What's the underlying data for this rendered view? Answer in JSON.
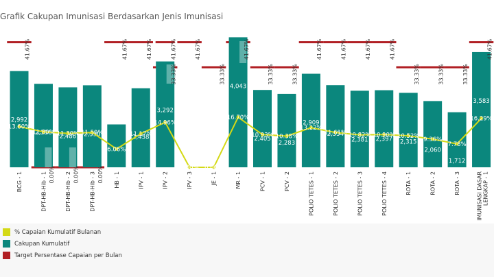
{
  "chart_data": {
    "type": "bar",
    "title": "Grafik Cakupan Imunisasi Berdasarkan Jenis Imunisasi",
    "categories": [
      "BCG - 1",
      "DPT-HB-Hib - 1",
      "DPT-HB-Hib - 2",
      "DPT-HB-Hib - 3",
      "HB - 1",
      "IPV - 1",
      "IPV - 2",
      "IPV - 3",
      "JE - 1",
      "MR - 1",
      "PCV - 1",
      "PCV - 2",
      "POLIO TETES - 1",
      "POLIO TETES - 2",
      "POLIO TETES - 3",
      "POLIO TETES - 4",
      "ROTA - 1",
      "ROTA - 2",
      "ROTA - 3",
      "IMUNISASI DASAR LENGKAP - 1"
    ],
    "series": [
      {
        "name": "Cakupan Kumulatif",
        "type": "bar",
        "values": [
          2992,
          2596,
          2486,
          2550,
          1333,
          2458,
          3292,
          0,
          0,
          4043,
          2405,
          2283,
          2909,
          2554,
          2381,
          2397,
          2315,
          2060,
          1712,
          3583
        ],
        "labels": [
          "2,992",
          "2,596",
          "2,486",
          "2,550",
          "1,333",
          "2,458",
          "3,292",
          "",
          "",
          "4,043",
          "2,405",
          "2,283",
          "2,909",
          "2,554",
          "2,381",
          "2,397",
          "2,315",
          "2,060",
          "1,712",
          "3,583"
        ]
      },
      {
        "name": "% Capaian Kumulatif Bulanan",
        "type": "line",
        "values": [
          13.6,
          11.8,
          11.3,
          11.6,
          6.1,
          11.2,
          15.0,
          0.0,
          0.0,
          16.7,
          10.9,
          10.4,
          13.2,
          11.6,
          10.8,
          10.9,
          10.5,
          9.4,
          7.8,
          16.3
        ],
        "labels": [
          "13.60%",
          "11.80%",
          "11.30%",
          "11.59%",
          "6.06%",
          "11.17%",
          "14.96%",
          "0.00%",
          "0.00%",
          "16.70%",
          "10.93%",
          "10.38%",
          "13.22%",
          "11.61%",
          "10.82%",
          "10.90%",
          "10.52%",
          "9.36%",
          "7.78%",
          "16.29%"
        ]
      },
      {
        "name": "Target Persentase Capaian per Bulan",
        "type": "target",
        "values": [
          41.67,
          0.0,
          0.0,
          0.0,
          41.67,
          41.67,
          33.33,
          41.67,
          33.33,
          41.67,
          33.33,
          33.33,
          41.67,
          41.67,
          41.67,
          41.67,
          33.33,
          33.33,
          33.33,
          41.67
        ],
        "labels": [
          "41.67%",
          "0.00%",
          "0.00%",
          "0.00%",
          "41.67%",
          "41.67%",
          "33.33%",
          "41.67%",
          "33.33%",
          "41.67%",
          "33.33%",
          "33.33%",
          "41.67%",
          "41.67%",
          "41.67%",
          "41.67%",
          "33.33%",
          "33.33%",
          "33.33%",
          "41.67%"
        ]
      }
    ],
    "ipv2_secondary_target_label": "41.67%",
    "ylim_bars": [
      0,
      4200
    ],
    "ylim_pct": [
      0,
      45
    ],
    "legend_position": "bottom-left",
    "colors": {
      "bar": "#0b877d",
      "line": "#d4d915",
      "target": "#b11f24"
    }
  },
  "legend": {
    "items": [
      {
        "label": "% Capaian Kumulatif Bulanan",
        "color": "#d4d915"
      },
      {
        "label": "Cakupan Kumulatif",
        "color": "#0b877d"
      },
      {
        "label": "Target Persentase Capaian per Bulan",
        "color": "#b11f24"
      }
    ]
  }
}
